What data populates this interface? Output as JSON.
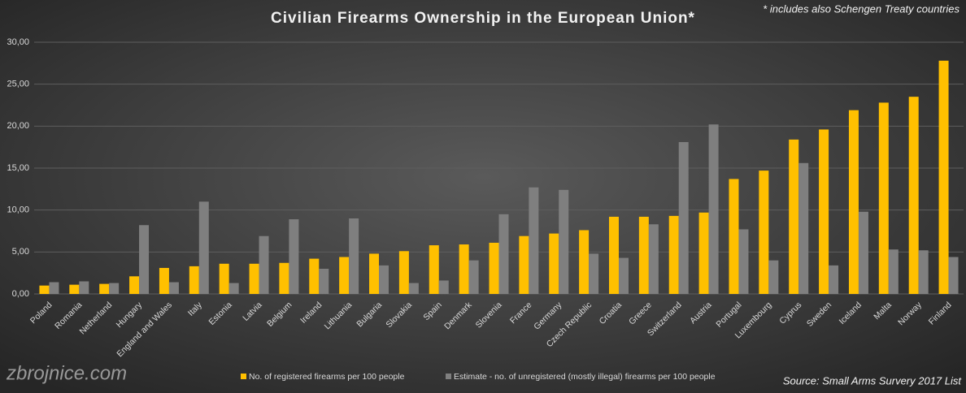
{
  "chart_data": {
    "type": "bar",
    "title": "Civilian Firearms Ownership in the European Union*",
    "subtitle": "* includes also Schengen Treaty countries",
    "watermark": "zbrojnice.com",
    "source": "Source: Small Arms Survery 2017 List",
    "categories": [
      "Poland",
      "Romania",
      "Netherland",
      "Hungary",
      "England and Wales",
      "Italy",
      "Estonia",
      "Latvia",
      "Belgium",
      "Ireland",
      "Lithuania",
      "Bulgaria",
      "Slovakia",
      "Spain",
      "Denmark",
      "Slovenia",
      "France",
      "Germany",
      "Czech Republic",
      "Croatia",
      "Greece",
      "Switzerland",
      "Austria",
      "Portugal",
      "Luxembourg",
      "Cyprus",
      "Sweden",
      "Iceland",
      "Malta",
      "Norway",
      "Finland"
    ],
    "series": [
      {
        "name": "No. of registered firearms per 100 people",
        "color": "#ffc000",
        "values": [
          1.0,
          1.1,
          1.2,
          2.1,
          3.1,
          3.3,
          3.6,
          3.6,
          3.7,
          4.2,
          4.4,
          4.8,
          5.1,
          5.8,
          5.9,
          6.1,
          6.9,
          7.2,
          7.6,
          9.2,
          9.2,
          9.3,
          9.7,
          13.7,
          14.7,
          18.4,
          19.6,
          21.9,
          22.8,
          23.5,
          27.8
        ]
      },
      {
        "name": "Estimate - no. of unregistered (mostly illegal) firearms per 100 people",
        "color": "#7f7f7f",
        "values": [
          1.4,
          1.5,
          1.3,
          8.2,
          1.4,
          11.0,
          1.3,
          6.9,
          8.9,
          3.0,
          9.0,
          3.4,
          1.3,
          1.6,
          4.0,
          9.5,
          12.7,
          12.4,
          4.8,
          4.3,
          8.3,
          18.1,
          20.2,
          7.7,
          4.0,
          15.6,
          3.4,
          9.8,
          5.3,
          5.2,
          4.4
        ]
      }
    ],
    "ylim": [
      0,
      30
    ],
    "yticks": [
      {
        "value": 0,
        "label": "0,00"
      },
      {
        "value": 5,
        "label": "5,00"
      },
      {
        "value": 10,
        "label": "10,00"
      },
      {
        "value": 15,
        "label": "15,00"
      },
      {
        "value": 20,
        "label": "20,00"
      },
      {
        "value": 25,
        "label": "25,00"
      },
      {
        "value": 30,
        "label": "30,00"
      }
    ],
    "grid": true
  }
}
